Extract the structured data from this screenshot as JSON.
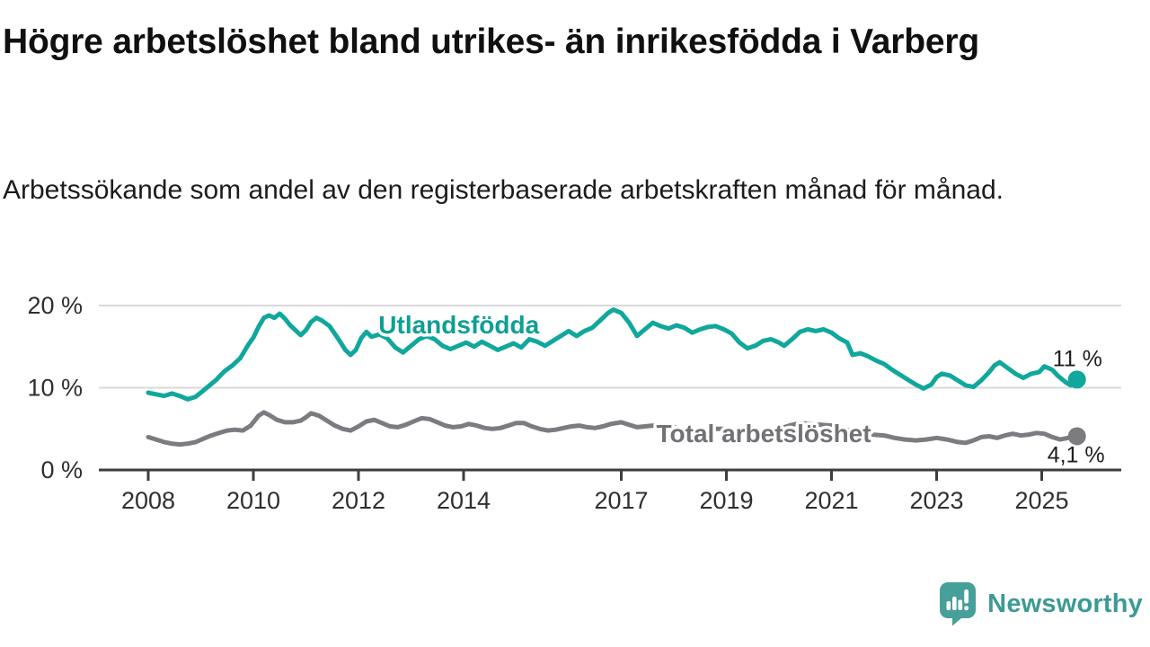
{
  "header": {
    "title": "Högre arbetslöshet bland utrikes- än inrikesfödda i Varberg",
    "subtitle": "Arbetssökande som andel av den registerbaserade arbetskraften månad för månad."
  },
  "footer": {
    "brand": "Newsworthy"
  },
  "chart_data": {
    "type": "line",
    "unit": "%",
    "grid": true,
    "legend_position": "inline-labels",
    "x_range": [
      2008.0,
      2025.67
    ],
    "ylim": [
      0,
      20
    ],
    "colors": {
      "grid": "#dadada",
      "axis": "#3d3d3d",
      "tick_text": "#2f2f2f"
    },
    "y_ticks": [
      {
        "value": 0,
        "label": "0 %"
      },
      {
        "value": 10,
        "label": "10 %"
      },
      {
        "value": 20,
        "label": "20 %"
      }
    ],
    "x_ticks": [
      {
        "year": 2008,
        "label": "2008"
      },
      {
        "year": 2010,
        "label": "2010"
      },
      {
        "year": 2012,
        "label": "2012"
      },
      {
        "year": 2014,
        "label": "2014"
      },
      {
        "year": 2017,
        "label": "2017"
      },
      {
        "year": 2019,
        "label": "2019"
      },
      {
        "year": 2021,
        "label": "2021"
      },
      {
        "year": 2023,
        "label": "2023"
      },
      {
        "year": 2025,
        "label": "2025"
      }
    ],
    "series": [
      {
        "id": "total",
        "name": "Total arbetslöshet",
        "color": "#7b7b80",
        "label_color": "#717176",
        "label_pos": [
          2019.71,
          3.4
        ],
        "end_value": 4.1,
        "end_label": "4,1 %",
        "end_label_offset": [
          -33,
          29
        ],
        "points": [
          [
            2008.0,
            4.0
          ],
          [
            2008.15,
            3.7
          ],
          [
            2008.3,
            3.4
          ],
          [
            2008.45,
            3.2
          ],
          [
            2008.6,
            3.1
          ],
          [
            2008.75,
            3.2
          ],
          [
            2008.9,
            3.4
          ],
          [
            2009.05,
            3.8
          ],
          [
            2009.2,
            4.2
          ],
          [
            2009.35,
            4.5
          ],
          [
            2009.5,
            4.8
          ],
          [
            2009.65,
            4.9
          ],
          [
            2009.8,
            4.8
          ],
          [
            2009.95,
            5.4
          ],
          [
            2010.1,
            6.6
          ],
          [
            2010.2,
            7.0
          ],
          [
            2010.3,
            6.7
          ],
          [
            2010.45,
            6.1
          ],
          [
            2010.6,
            5.8
          ],
          [
            2010.75,
            5.8
          ],
          [
            2010.9,
            6.0
          ],
          [
            2011.0,
            6.4
          ],
          [
            2011.1,
            6.9
          ],
          [
            2011.25,
            6.6
          ],
          [
            2011.4,
            6.0
          ],
          [
            2011.55,
            5.4
          ],
          [
            2011.7,
            5.0
          ],
          [
            2011.85,
            4.8
          ],
          [
            2012.0,
            5.3
          ],
          [
            2012.15,
            5.9
          ],
          [
            2012.3,
            6.1
          ],
          [
            2012.45,
            5.7
          ],
          [
            2012.6,
            5.3
          ],
          [
            2012.75,
            5.2
          ],
          [
            2012.9,
            5.5
          ],
          [
            2013.05,
            5.9
          ],
          [
            2013.2,
            6.3
          ],
          [
            2013.35,
            6.2
          ],
          [
            2013.5,
            5.8
          ],
          [
            2013.65,
            5.4
          ],
          [
            2013.8,
            5.2
          ],
          [
            2013.95,
            5.3
          ],
          [
            2014.1,
            5.6
          ],
          [
            2014.25,
            5.4
          ],
          [
            2014.4,
            5.1
          ],
          [
            2014.55,
            5.0
          ],
          [
            2014.7,
            5.1
          ],
          [
            2014.85,
            5.4
          ],
          [
            2015.0,
            5.7
          ],
          [
            2015.15,
            5.7
          ],
          [
            2015.3,
            5.3
          ],
          [
            2015.45,
            5.0
          ],
          [
            2015.6,
            4.8
          ],
          [
            2015.75,
            4.9
          ],
          [
            2015.9,
            5.1
          ],
          [
            2016.05,
            5.3
          ],
          [
            2016.2,
            5.4
          ],
          [
            2016.35,
            5.2
          ],
          [
            2016.5,
            5.1
          ],
          [
            2016.65,
            5.3
          ],
          [
            2016.8,
            5.6
          ],
          [
            2017.0,
            5.8
          ],
          [
            2017.15,
            5.5
          ],
          [
            2017.3,
            5.2
          ],
          [
            2017.45,
            5.3
          ],
          [
            2017.6,
            5.4
          ],
          [
            2017.8,
            5.3
          ],
          [
            2018.0,
            5.2
          ],
          [
            2018.2,
            4.9
          ],
          [
            2018.4,
            4.7
          ],
          [
            2018.6,
            4.9
          ],
          [
            2018.8,
            5.0
          ],
          [
            2019.0,
            5.0
          ],
          [
            2019.2,
            4.7
          ],
          [
            2019.4,
            4.5
          ],
          [
            2019.6,
            4.7
          ],
          [
            2019.8,
            4.9
          ],
          [
            2020.0,
            5.0
          ],
          [
            2020.2,
            5.4
          ],
          [
            2020.4,
            5.7
          ],
          [
            2020.6,
            5.6
          ],
          [
            2020.8,
            5.5
          ],
          [
            2021.0,
            5.4
          ],
          [
            2021.2,
            5.1
          ],
          [
            2021.4,
            4.7
          ],
          [
            2021.6,
            4.5
          ],
          [
            2021.8,
            4.3
          ],
          [
            2022.0,
            4.2
          ],
          [
            2022.2,
            3.9
          ],
          [
            2022.4,
            3.7
          ],
          [
            2022.6,
            3.6
          ],
          [
            2022.8,
            3.7
          ],
          [
            2023.0,
            3.9
          ],
          [
            2023.2,
            3.7
          ],
          [
            2023.4,
            3.4
          ],
          [
            2023.55,
            3.3
          ],
          [
            2023.7,
            3.6
          ],
          [
            2023.85,
            4.0
          ],
          [
            2024.0,
            4.1
          ],
          [
            2024.15,
            3.9
          ],
          [
            2024.3,
            4.2
          ],
          [
            2024.45,
            4.4
          ],
          [
            2024.6,
            4.2
          ],
          [
            2024.75,
            4.3
          ],
          [
            2024.9,
            4.5
          ],
          [
            2025.05,
            4.4
          ],
          [
            2025.2,
            4.0
          ],
          [
            2025.35,
            3.7
          ],
          [
            2025.5,
            3.9
          ],
          [
            2025.67,
            4.1
          ]
        ]
      },
      {
        "id": "utlandsfodda",
        "name": "Utlandsfödda",
        "color": "#10a79c",
        "label_color": "#0f9e94",
        "label_pos": [
          2013.91,
          16.6
        ],
        "end_value": 11,
        "end_label": "11 %",
        "end_label_offset": [
          -27,
          -15
        ],
        "points": [
          [
            2008.0,
            9.4
          ],
          [
            2008.15,
            9.2
          ],
          [
            2008.3,
            9.0
          ],
          [
            2008.45,
            9.3
          ],
          [
            2008.6,
            9.0
          ],
          [
            2008.75,
            8.6
          ],
          [
            2008.9,
            8.9
          ],
          [
            2009.0,
            9.4
          ],
          [
            2009.15,
            10.2
          ],
          [
            2009.3,
            11.0
          ],
          [
            2009.45,
            12.0
          ],
          [
            2009.6,
            12.7
          ],
          [
            2009.75,
            13.6
          ],
          [
            2009.9,
            15.2
          ],
          [
            2010.0,
            16.1
          ],
          [
            2010.1,
            17.4
          ],
          [
            2010.2,
            18.5
          ],
          [
            2010.3,
            18.8
          ],
          [
            2010.4,
            18.5
          ],
          [
            2010.5,
            19.0
          ],
          [
            2010.6,
            18.4
          ],
          [
            2010.7,
            17.6
          ],
          [
            2010.8,
            17.0
          ],
          [
            2010.9,
            16.4
          ],
          [
            2011.0,
            17.0
          ],
          [
            2011.1,
            18.0
          ],
          [
            2011.2,
            18.5
          ],
          [
            2011.3,
            18.2
          ],
          [
            2011.45,
            17.5
          ],
          [
            2011.6,
            16.1
          ],
          [
            2011.75,
            14.6
          ],
          [
            2011.85,
            14.0
          ],
          [
            2011.95,
            14.6
          ],
          [
            2012.05,
            16.0
          ],
          [
            2012.15,
            16.8
          ],
          [
            2012.25,
            16.2
          ],
          [
            2012.4,
            16.5
          ],
          [
            2012.55,
            16.0
          ],
          [
            2012.7,
            14.9
          ],
          [
            2012.85,
            14.3
          ],
          [
            2013.0,
            15.1
          ],
          [
            2013.15,
            15.9
          ],
          [
            2013.3,
            16.3
          ],
          [
            2013.45,
            15.9
          ],
          [
            2013.6,
            15.1
          ],
          [
            2013.75,
            14.7
          ],
          [
            2013.9,
            15.1
          ],
          [
            2014.05,
            15.5
          ],
          [
            2014.2,
            15.0
          ],
          [
            2014.35,
            15.6
          ],
          [
            2014.5,
            15.1
          ],
          [
            2014.65,
            14.6
          ],
          [
            2014.8,
            15.0
          ],
          [
            2014.95,
            15.4
          ],
          [
            2015.1,
            14.9
          ],
          [
            2015.25,
            15.9
          ],
          [
            2015.4,
            15.6
          ],
          [
            2015.55,
            15.1
          ],
          [
            2015.7,
            15.7
          ],
          [
            2015.85,
            16.3
          ],
          [
            2016.0,
            16.9
          ],
          [
            2016.15,
            16.3
          ],
          [
            2016.3,
            16.9
          ],
          [
            2016.45,
            17.3
          ],
          [
            2016.6,
            18.2
          ],
          [
            2016.75,
            19.1
          ],
          [
            2016.85,
            19.5
          ],
          [
            2017.0,
            19.1
          ],
          [
            2017.15,
            17.9
          ],
          [
            2017.3,
            16.3
          ],
          [
            2017.45,
            17.1
          ],
          [
            2017.6,
            17.9
          ],
          [
            2017.75,
            17.5
          ],
          [
            2017.9,
            17.2
          ],
          [
            2018.05,
            17.6
          ],
          [
            2018.2,
            17.3
          ],
          [
            2018.35,
            16.7
          ],
          [
            2018.5,
            17.1
          ],
          [
            2018.65,
            17.4
          ],
          [
            2018.8,
            17.5
          ],
          [
            2018.95,
            17.1
          ],
          [
            2019.1,
            16.6
          ],
          [
            2019.25,
            15.5
          ],
          [
            2019.4,
            14.8
          ],
          [
            2019.55,
            15.1
          ],
          [
            2019.7,
            15.7
          ],
          [
            2019.85,
            15.9
          ],
          [
            2020.0,
            15.5
          ],
          [
            2020.1,
            15.1
          ],
          [
            2020.25,
            15.9
          ],
          [
            2020.4,
            16.8
          ],
          [
            2020.55,
            17.1
          ],
          [
            2020.7,
            16.9
          ],
          [
            2020.85,
            17.1
          ],
          [
            2021.0,
            16.7
          ],
          [
            2021.15,
            16.0
          ],
          [
            2021.3,
            15.5
          ],
          [
            2021.4,
            14.0
          ],
          [
            2021.55,
            14.2
          ],
          [
            2021.7,
            13.8
          ],
          [
            2021.85,
            13.3
          ],
          [
            2022.0,
            12.9
          ],
          [
            2022.15,
            12.2
          ],
          [
            2022.3,
            11.6
          ],
          [
            2022.45,
            11.0
          ],
          [
            2022.6,
            10.4
          ],
          [
            2022.75,
            9.9
          ],
          [
            2022.9,
            10.4
          ],
          [
            2023.0,
            11.3
          ],
          [
            2023.1,
            11.7
          ],
          [
            2023.25,
            11.5
          ],
          [
            2023.4,
            10.9
          ],
          [
            2023.55,
            10.3
          ],
          [
            2023.7,
            10.1
          ],
          [
            2023.85,
            10.9
          ],
          [
            2024.0,
            11.9
          ],
          [
            2024.1,
            12.7
          ],
          [
            2024.2,
            13.1
          ],
          [
            2024.35,
            12.4
          ],
          [
            2024.5,
            11.7
          ],
          [
            2024.65,
            11.2
          ],
          [
            2024.8,
            11.7
          ],
          [
            2024.95,
            11.9
          ],
          [
            2025.05,
            12.6
          ],
          [
            2025.2,
            12.2
          ],
          [
            2025.3,
            11.5
          ],
          [
            2025.45,
            10.7
          ],
          [
            2025.55,
            10.3
          ],
          [
            2025.67,
            11.0
          ]
        ]
      }
    ]
  }
}
